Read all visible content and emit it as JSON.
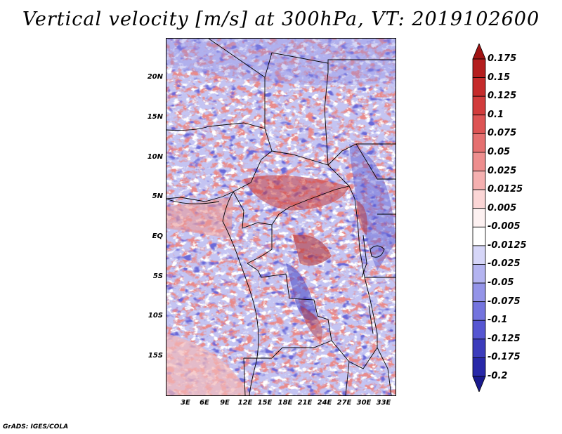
{
  "title": "Vertical velocity [m/s] at 300hPa, VT: 2019102600",
  "footer": "GrADS: IGES/COLA",
  "lat_labels": [
    "20N",
    "15N",
    "10N",
    "5N",
    "EQ",
    "5S",
    "10S",
    "15S"
  ],
  "lon_labels": [
    "3E",
    "6E",
    "9E",
    "12E",
    "15E",
    "18E",
    "21E",
    "24E",
    "27E",
    "30E",
    "33E"
  ],
  "colorbar": {
    "labels": [
      "0.175",
      "0.15",
      "0.125",
      "0.1",
      "0.075",
      "0.05",
      "0.025",
      "0.0125",
      "0.005",
      "-0.005",
      "-0.0125",
      "-0.025",
      "-0.05",
      "-0.075",
      "-0.1",
      "-0.125",
      "-0.175",
      "-0.2"
    ],
    "colors": [
      "#a01414",
      "#b41e1e",
      "#c52b2b",
      "#d23c3c",
      "#dd5454",
      "#e57070",
      "#ee8e8e",
      "#f5b0b0",
      "#fbd6d6",
      "#fdf1f1",
      "#ffffff",
      "#d6d6f8",
      "#b4b4f0",
      "#9494e8",
      "#7474de",
      "#5656d2",
      "#3c3cbc",
      "#2828a8",
      "#1a1a8e"
    ]
  }
}
